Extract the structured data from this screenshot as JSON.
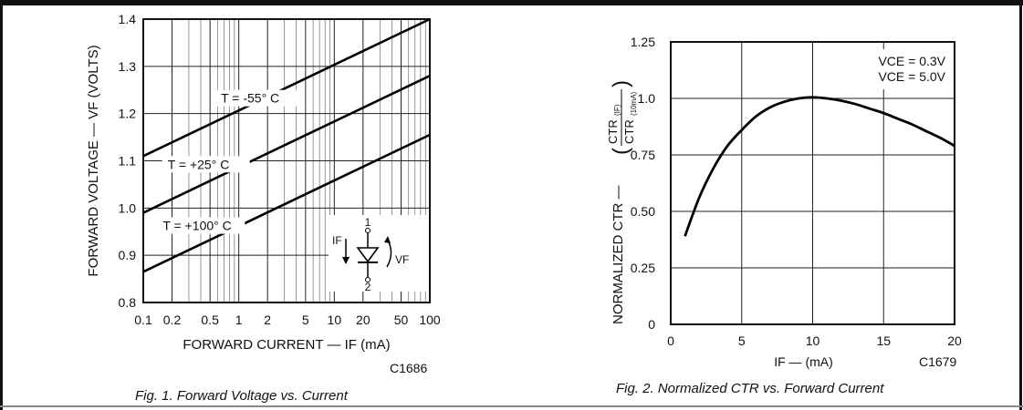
{
  "chart_data": [
    {
      "type": "line",
      "xscale": "log",
      "xlim": [
        0.1,
        100
      ],
      "ylim": [
        0.8,
        1.4
      ],
      "x_ticks": [
        0.1,
        0.2,
        0.5,
        1,
        2,
        5,
        10,
        20,
        50,
        100
      ],
      "x_tick_labels": [
        "0.1",
        "0.2",
        "0.5",
        "1",
        "2",
        "5",
        "10",
        "20",
        "50",
        "100"
      ],
      "y_ticks": [
        0.8,
        0.9,
        1.0,
        1.1,
        1.2,
        1.3,
        1.4
      ],
      "y_tick_labels": [
        "0.8",
        "0.9",
        "1.0",
        "1.1",
        "1.2",
        "1.3",
        "1.4"
      ],
      "xlabel": "FORWARD CURRENT — IF (mA)",
      "ylabel": "FORWARD VOLTAGE — VF (VOLTS)",
      "grid": true,
      "series": [
        {
          "name": "T = -55° C",
          "x": [
            0.1,
            100
          ],
          "y": [
            1.11,
            1.4
          ]
        },
        {
          "name": "T = +25° C",
          "x": [
            0.1,
            100
          ],
          "y": [
            0.99,
            1.28
          ]
        },
        {
          "name": "T = +100° C",
          "x": [
            0.1,
            100
          ],
          "y": [
            0.865,
            1.155
          ]
        }
      ],
      "inset": {
        "current_label": "IF",
        "voltage_label": "VF",
        "pin_top": "1",
        "pin_bottom": "2"
      },
      "code": "C1686",
      "caption": "Fig. 1. Forward Voltage vs. Current"
    },
    {
      "type": "line",
      "xlim": [
        0,
        20
      ],
      "ylim": [
        0,
        1.25
      ],
      "x_ticks": [
        0,
        5,
        10,
        15,
        20
      ],
      "x_tick_labels": [
        "0",
        "5",
        "10",
        "15",
        "20"
      ],
      "y_ticks": [
        0,
        0.25,
        0.5,
        0.75,
        1.0,
        1.25
      ],
      "y_tick_labels": [
        "0",
        "0.25",
        "0.50",
        "0.75",
        "1.0",
        "1.25"
      ],
      "xlabel": "IF — (mA)",
      "ylabel": "NORMALIZED CTR —",
      "ylabel_fraction": {
        "numerator": "CTR",
        "num_sub": "(IF)",
        "denominator": "CTR",
        "den_sub": "(10mA)"
      },
      "grid": true,
      "legend": [
        "VCE = 0.3V",
        "VCE = 5.0V"
      ],
      "legend_position": "top-right",
      "series": [
        {
          "x": [
            1,
            2,
            3,
            4,
            5,
            6,
            7,
            8,
            9,
            10,
            11,
            12,
            13,
            14,
            15,
            16,
            17,
            18,
            19,
            20
          ],
          "y": [
            0.39,
            0.56,
            0.69,
            0.79,
            0.86,
            0.92,
            0.96,
            0.985,
            1.0,
            1.005,
            1.0,
            0.99,
            0.975,
            0.955,
            0.935,
            0.91,
            0.885,
            0.855,
            0.825,
            0.79
          ]
        }
      ],
      "code": "C1679",
      "caption": "Fig. 2. Normalized CTR vs. Forward Current"
    }
  ]
}
